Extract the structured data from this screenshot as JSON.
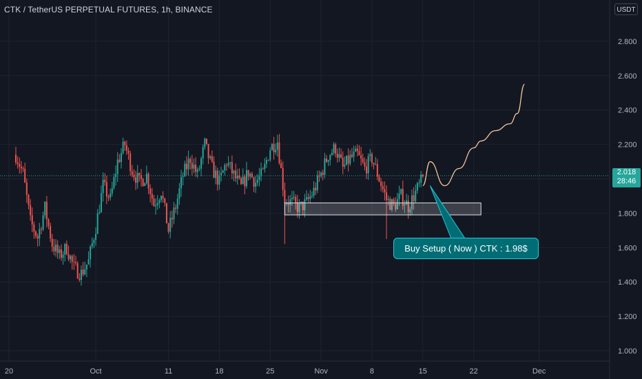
{
  "chart_data": {
    "type": "candlestick",
    "title": "CTK / TetherUS PERPETUAL FUTURES, 1h, BINANCE",
    "currency": "USDT",
    "ylim": [
      0.94,
      3.04
    ],
    "y_ticks": [
      "1.000",
      "1.200",
      "1.400",
      "1.600",
      "1.800",
      "2.000",
      "2.200",
      "2.400",
      "2.600",
      "2.800"
    ],
    "x_ticks": [
      "20",
      "Oct",
      "11",
      "18",
      "25",
      "Nov",
      "8",
      "15",
      "22",
      "Dec"
    ],
    "x_range": [
      "2021-09-20",
      "2021-12-06"
    ],
    "last_price": "2.018",
    "countdown": "28:46",
    "up_color": "#26a69a",
    "down_color": "#ef5350",
    "price_path": [
      [
        "2021-09-20",
        2.14
      ],
      [
        "2021-09-21",
        2.03
      ],
      [
        "2021-09-22",
        1.75
      ],
      [
        "2021-09-23",
        1.66
      ],
      [
        "2021-09-24",
        1.83
      ],
      [
        "2021-09-25",
        1.62
      ],
      [
        "2021-09-26",
        1.55
      ],
      [
        "2021-09-27",
        1.6
      ],
      [
        "2021-09-28",
        1.48
      ],
      [
        "2021-09-29",
        1.45
      ],
      [
        "2021-09-30",
        1.52
      ],
      [
        "2021-10-01",
        1.72
      ],
      [
        "2021-10-02",
        1.96
      ],
      [
        "2021-10-03",
        1.88
      ],
      [
        "2021-10-04",
        2.1
      ],
      [
        "2021-10-05",
        2.2
      ],
      [
        "2021-10-06",
        2.05
      ],
      [
        "2021-10-07",
        1.98
      ],
      [
        "2021-10-08",
        2.02
      ],
      [
        "2021-10-09",
        1.85
      ],
      [
        "2021-10-10",
        1.93
      ],
      [
        "2021-10-11",
        1.7
      ],
      [
        "2021-10-12",
        1.84
      ],
      [
        "2021-10-13",
        2.02
      ],
      [
        "2021-10-14",
        2.12
      ],
      [
        "2021-10-15",
        2.02
      ],
      [
        "2021-10-16",
        2.2
      ],
      [
        "2021-10-17",
        2.06
      ],
      [
        "2021-10-18",
        1.98
      ],
      [
        "2021-10-19",
        2.1
      ],
      [
        "2021-10-20",
        2.02
      ],
      [
        "2021-10-21",
        1.95
      ],
      [
        "2021-10-22",
        2.04
      ],
      [
        "2021-10-23",
        1.98
      ],
      [
        "2021-10-24",
        2.03
      ],
      [
        "2021-10-25",
        2.18
      ],
      [
        "2021-10-26",
        2.22
      ],
      [
        "2021-10-27",
        1.88
      ],
      [
        "2021-10-28",
        1.86
      ],
      [
        "2021-10-29",
        1.83
      ],
      [
        "2021-10-30",
        1.86
      ],
      [
        "2021-10-31",
        1.93
      ],
      [
        "2021-11-01",
        2.03
      ],
      [
        "2021-11-02",
        2.14
      ],
      [
        "2021-11-03",
        2.18
      ],
      [
        "2021-11-04",
        2.06
      ],
      [
        "2021-11-05",
        2.12
      ],
      [
        "2021-11-06",
        2.14
      ],
      [
        "2021-11-07",
        2.06
      ],
      [
        "2021-11-08",
        2.12
      ],
      [
        "2021-11-09",
        2.0
      ],
      [
        "2021-11-10",
        1.88
      ],
      [
        "2021-11-11",
        1.84
      ],
      [
        "2021-11-12",
        1.9
      ],
      [
        "2021-11-13",
        1.84
      ],
      [
        "2021-11-14",
        1.92
      ],
      [
        "2021-11-15",
        2.0
      ]
    ],
    "spikes": [
      {
        "x": "2021-10-27",
        "low": 1.62
      },
      {
        "x": "2021-11-10",
        "low": 1.65
      }
    ],
    "demand_zone": {
      "x0": "2021-10-27",
      "x1": "2021-11-23",
      "y0": 1.79,
      "y1": 1.86
    },
    "projection": [
      [
        "2021-11-15",
        1.96
      ],
      [
        "2021-11-16",
        2.1
      ],
      [
        "2021-11-18",
        1.96
      ],
      [
        "2021-11-20",
        2.06
      ],
      [
        "2021-11-22",
        2.18
      ],
      [
        "2021-11-23",
        2.22
      ],
      [
        "2021-11-25",
        2.28
      ],
      [
        "2021-11-27",
        2.32
      ],
      [
        "2021-11-28",
        2.38
      ],
      [
        "2021-11-29",
        2.55
      ]
    ],
    "callout": {
      "text": "Buy Setup ( Now ) CTK : 1.98$",
      "anchor": [
        "2021-11-16",
        1.96
      ]
    }
  }
}
